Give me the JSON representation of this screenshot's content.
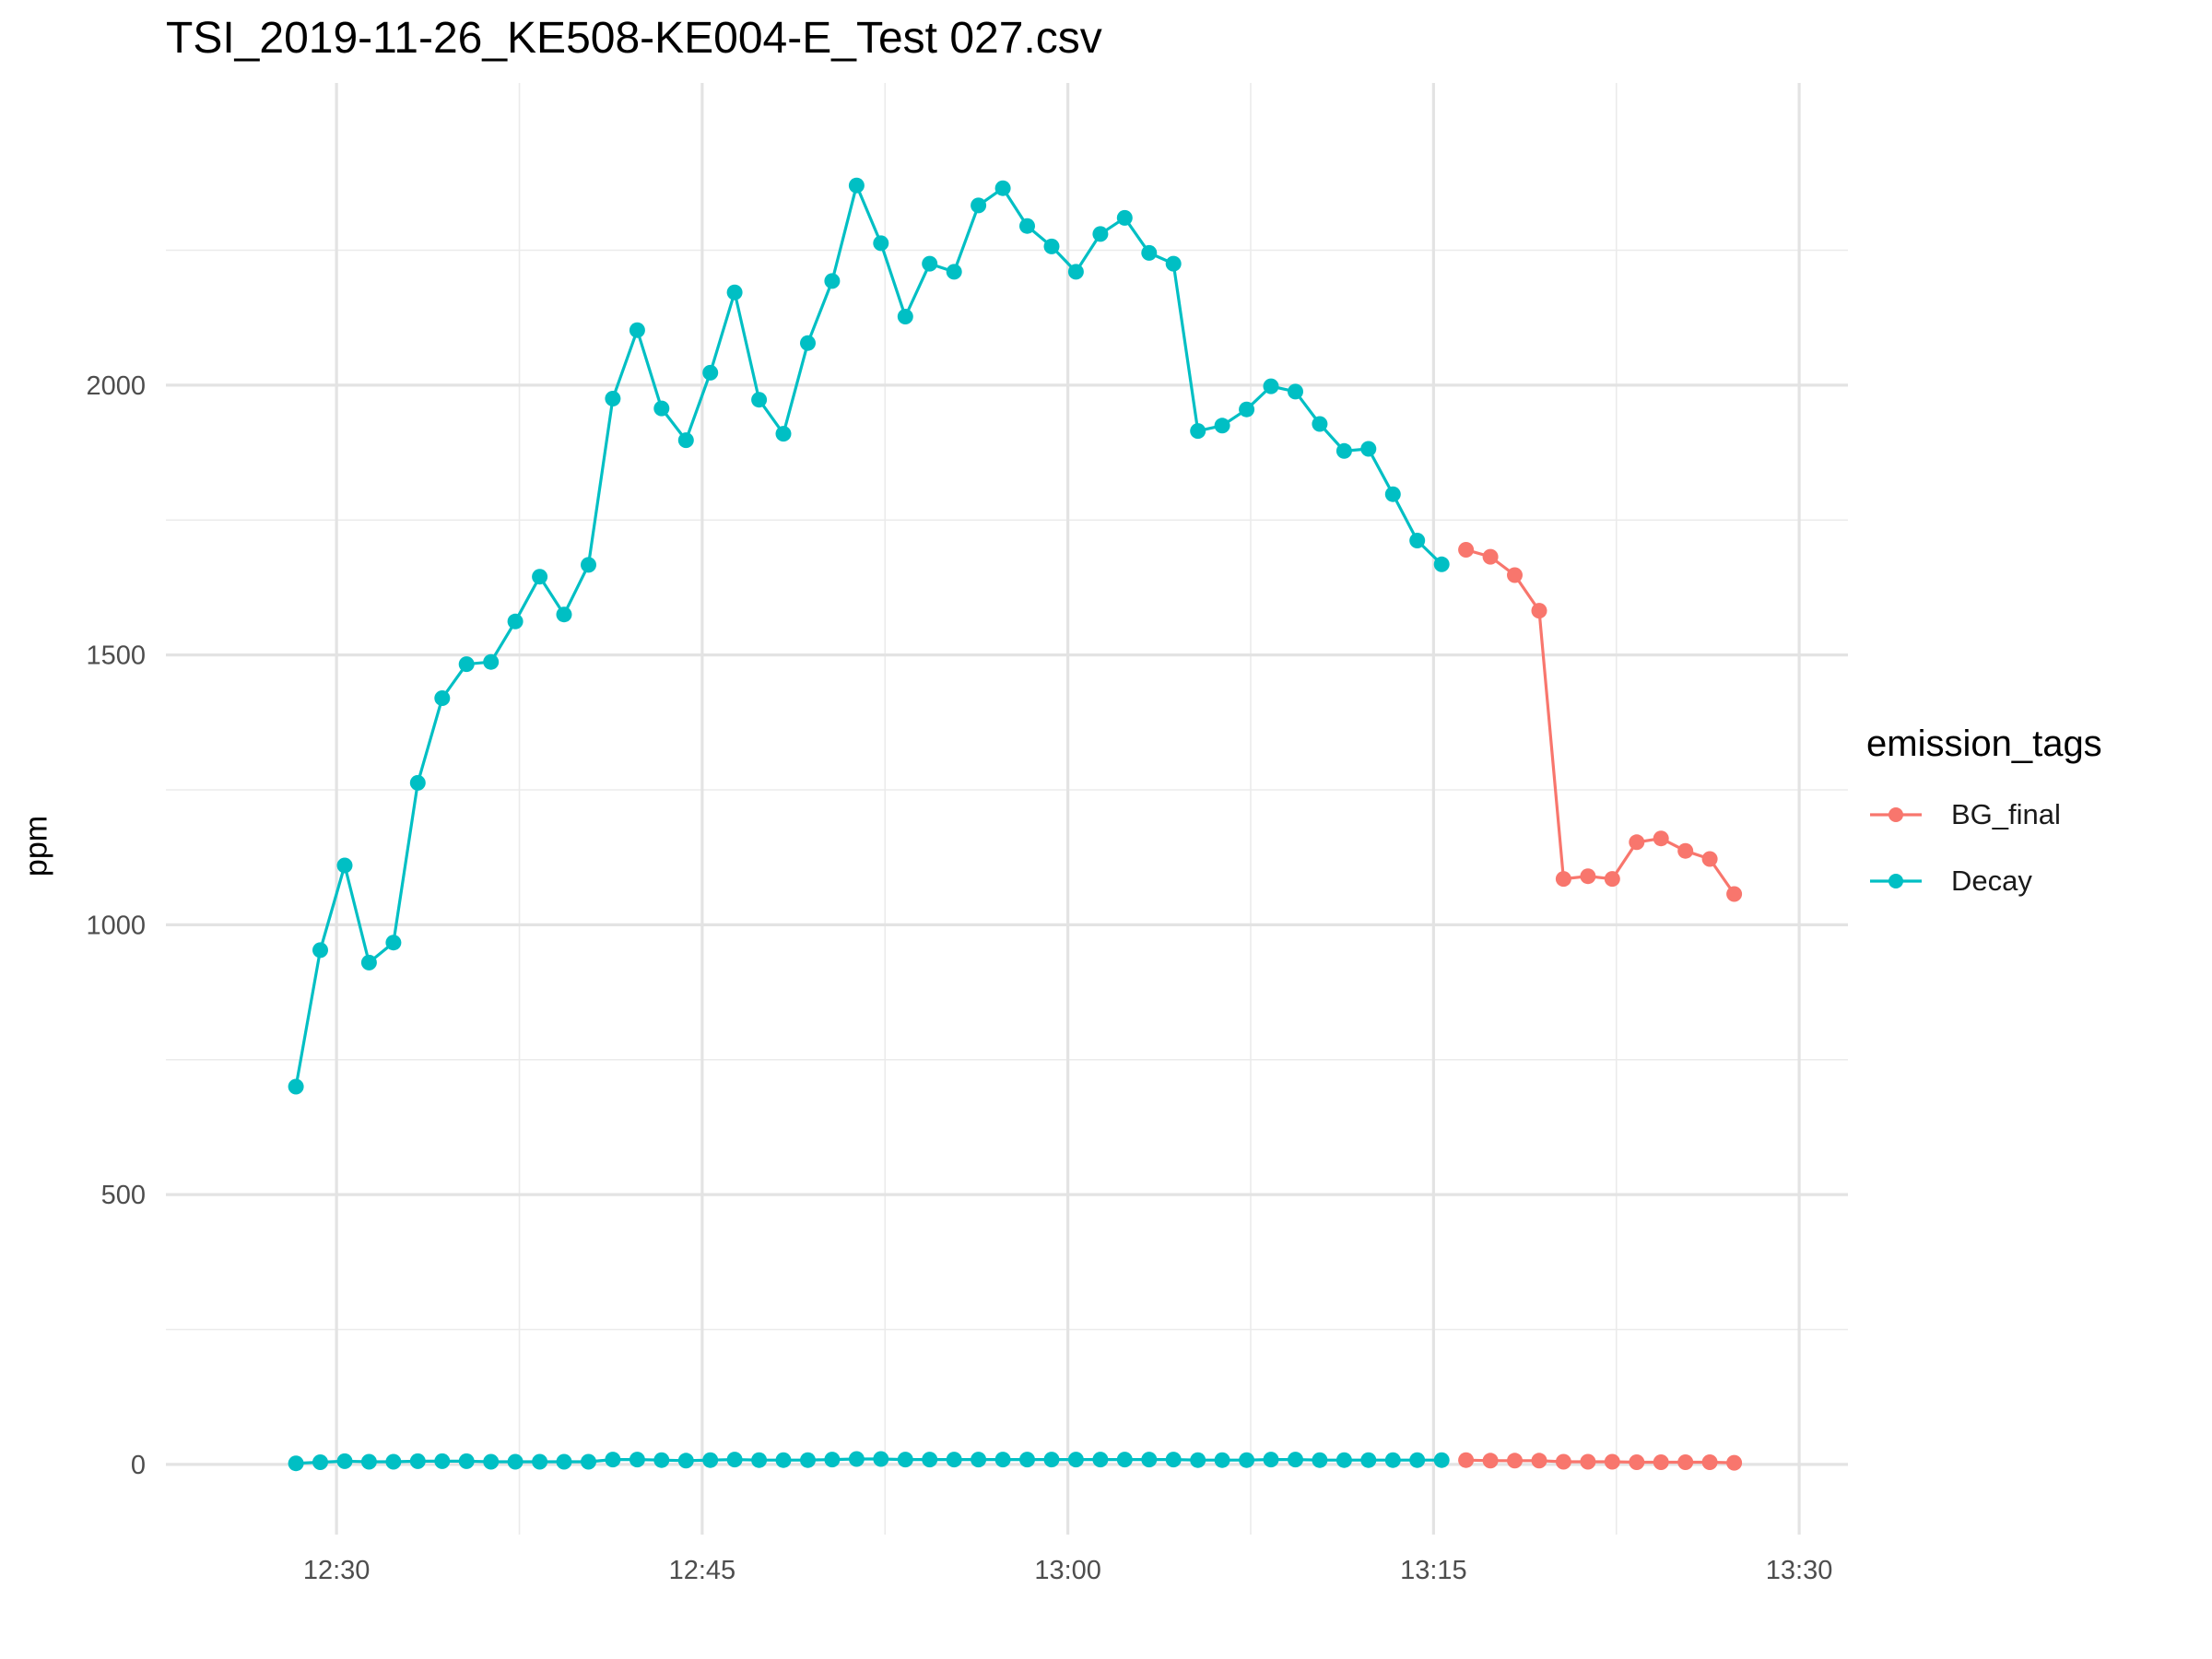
{
  "chart_data": {
    "type": "line",
    "title": "TSI_2019-11-26_KE508-KE004-E_Test 027.csv",
    "xlabel": "",
    "ylabel": "ppm",
    "xlim": [
      "12:23:00",
      "13:32:00"
    ],
    "ylim": [
      -130,
      2560
    ],
    "x_ticks": [
      "12:30",
      "12:45",
      "13:00",
      "13:15",
      "13:30"
    ],
    "y_ticks": [
      0,
      500,
      1000,
      1500,
      2000
    ],
    "grid": true,
    "legend": {
      "title": "emission_tags",
      "placement": "right",
      "items": [
        {
          "name": "BG_final",
          "color": "#F8766D"
        },
        {
          "name": "Decay",
          "color": "#00BFC4"
        }
      ]
    },
    "series": [
      {
        "name": "Decay",
        "color": "#00BFC4",
        "x": [
          "12:28:20",
          "12:29:20",
          "12:30:20",
          "12:31:20",
          "12:32:20",
          "12:33:20",
          "12:34:20",
          "12:35:20",
          "12:36:20",
          "12:37:20",
          "12:38:20",
          "12:39:20",
          "12:40:20",
          "12:41:20",
          "12:42:20",
          "12:43:20",
          "12:44:20",
          "12:45:20",
          "12:46:20",
          "12:47:20",
          "12:48:20",
          "12:49:20",
          "12:50:20",
          "12:51:20",
          "12:52:20",
          "12:53:20",
          "12:54:20",
          "12:55:20",
          "12:56:20",
          "12:57:20",
          "12:58:20",
          "12:59:20",
          "13:00:20",
          "13:01:20",
          "13:02:20",
          "13:03:20",
          "13:04:20",
          "13:05:20",
          "13:06:20",
          "13:07:20",
          "13:08:20",
          "13:09:20",
          "13:10:20",
          "13:11:20",
          "13:12:20",
          "13:13:20",
          "13:14:20",
          "13:15:20"
        ],
        "y": [
          700,
          953,
          1110,
          930,
          967,
          1263,
          1420,
          1483,
          1487,
          1562,
          1645,
          1575,
          1667,
          1975,
          2102,
          1957,
          1898,
          2023,
          2172,
          1973,
          1910,
          2078,
          2193,
          2370,
          2263,
          2127,
          2225,
          2210,
          2333,
          2365,
          2295,
          2257,
          2210,
          2280,
          2310,
          2245,
          2225,
          1915,
          1925,
          1955,
          1998,
          1988,
          1928,
          1878,
          1882,
          1798,
          1712,
          1668
        ]
      },
      {
        "name": "Decay",
        "color": "#00BFC4",
        "x": [
          "12:28:20",
          "12:29:20",
          "12:30:20",
          "12:31:20",
          "12:32:20",
          "12:33:20",
          "12:34:20",
          "12:35:20",
          "12:36:20",
          "12:37:20",
          "12:38:20",
          "12:39:20",
          "12:40:20",
          "12:41:20",
          "12:42:20",
          "12:43:20",
          "12:44:20",
          "12:45:20",
          "12:46:20",
          "12:47:20",
          "12:48:20",
          "12:49:20",
          "12:50:20",
          "12:51:20",
          "12:52:20",
          "12:53:20",
          "12:54:20",
          "12:55:20",
          "12:56:20",
          "12:57:20",
          "12:58:20",
          "12:59:20",
          "13:00:20",
          "13:01:20",
          "13:02:20",
          "13:03:20",
          "13:04:20",
          "13:05:20",
          "13:06:20",
          "13:07:20",
          "13:08:20",
          "13:09:20",
          "13:10:20",
          "13:11:20",
          "13:12:20",
          "13:13:20",
          "13:14:20",
          "13:15:20"
        ],
        "y": [
          2,
          4,
          6,
          5,
          5,
          6,
          6,
          6,
          5,
          5,
          5,
          5,
          5,
          9,
          9,
          8,
          7,
          8,
          9,
          8,
          8,
          8,
          9,
          10,
          10,
          9,
          9,
          9,
          9,
          9,
          9,
          9,
          9,
          9,
          9,
          9,
          9,
          8,
          8,
          8,
          9,
          9,
          8,
          8,
          8,
          8,
          8,
          8
        ]
      },
      {
        "name": "BG_final",
        "color": "#F8766D",
        "x": [
          "13:16:20",
          "13:17:20",
          "13:18:20",
          "13:19:20",
          "13:20:20",
          "13:21:20",
          "13:22:20",
          "13:23:20",
          "13:24:20",
          "13:25:20",
          "13:26:20",
          "13:27:20"
        ],
        "y": [
          1695,
          1682,
          1648,
          1582,
          1085,
          1090,
          1085,
          1153,
          1160,
          1137,
          1122,
          1057
        ]
      },
      {
        "name": "BG_final",
        "color": "#F8766D",
        "x": [
          "13:16:20",
          "13:17:20",
          "13:18:20",
          "13:19:20",
          "13:20:20",
          "13:21:20",
          "13:22:20",
          "13:23:20",
          "13:24:20",
          "13:25:20",
          "13:26:20",
          "13:27:20"
        ],
        "y": [
          8,
          7,
          7,
          7,
          5,
          5,
          5,
          4,
          4,
          4,
          4,
          3
        ]
      }
    ]
  }
}
